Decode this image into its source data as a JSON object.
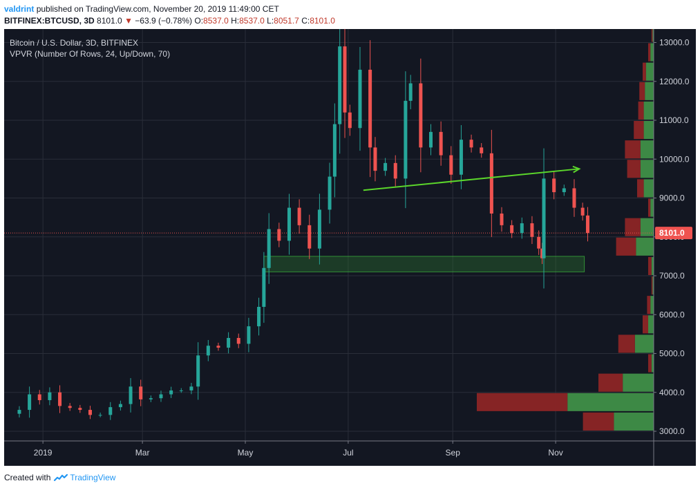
{
  "header": {
    "author": "valdrint",
    "published": "published on TradingView.com, November 20, 2019 11:49:00 CET",
    "symbol": "BITFINEX:BTCUSD, 3D",
    "last": "8101.0",
    "change": "−63.9 (−0.78%)",
    "o_label": "O:",
    "o_value": "8537.0",
    "h_label": "H:",
    "h_value": "8537.0",
    "l_label": "L:",
    "l_value": "8051.7",
    "c_label": "C:",
    "c_value": "8101.0"
  },
  "footer": {
    "created_with": "Created with",
    "brand": "TradingView"
  },
  "colors": {
    "background": "#131722",
    "grid": "#2a2e39",
    "up": "#26a69a",
    "down": "#ef5350",
    "trendline": "#5bd62b",
    "zone": "#2e7d32",
    "vp_up": "#3f8f48",
    "vp_down": "#8c2526",
    "axis_text": "#d1d4dc",
    "price_line": "#ef5350"
  },
  "chart_data": {
    "type": "candlestick",
    "title": "Bitcoin / U.S. Dollar, 3D, BITFINEX",
    "indicator": "VPVR (Number Of Rows, 24, Up/Down, 70)",
    "y_ticks": [
      "3000.0",
      "4000.0",
      "5000.0",
      "6000.0",
      "7000.0",
      "8000.0",
      "9000.0",
      "10000.0",
      "11000.0",
      "12000.0",
      "13000.0"
    ],
    "ylim": [
      2850,
      13550
    ],
    "x_ticks": [
      "2019",
      "Mar",
      "May",
      "Jul",
      "Sep",
      "Nov"
    ],
    "last_price_label": "8101.0",
    "last_price": 8101.0,
    "candle_period": "3D",
    "series_approx": [
      [
        "2018-12-12",
        3450
      ],
      [
        "2018-12-18",
        3550
      ],
      [
        "2018-12-24",
        3950
      ],
      [
        "2018-12-30",
        3800
      ],
      [
        "2019-01-05",
        4000
      ],
      [
        "2019-01-11",
        3650
      ],
      [
        "2019-01-17",
        3600
      ],
      [
        "2019-01-23",
        3550
      ],
      [
        "2019-01-29",
        3420
      ],
      [
        "2019-02-04",
        3420
      ],
      [
        "2019-02-10",
        3620
      ],
      [
        "2019-02-16",
        3700
      ],
      [
        "2019-02-22",
        4150
      ],
      [
        "2019-02-28",
        3820
      ],
      [
        "2019-03-06",
        3850
      ],
      [
        "2019-03-12",
        3950
      ],
      [
        "2019-03-18",
        4050
      ],
      [
        "2019-03-24",
        4050
      ],
      [
        "2019-03-30",
        4150
      ],
      [
        "2019-04-03",
        4950
      ],
      [
        "2019-04-09",
        5200
      ],
      [
        "2019-04-15",
        5150
      ],
      [
        "2019-04-21",
        5400
      ],
      [
        "2019-04-27",
        5250
      ],
      [
        "2019-05-03",
        5700
      ],
      [
        "2019-05-09",
        6200
      ],
      [
        "2019-05-12",
        7200
      ],
      [
        "2019-05-15",
        8200
      ],
      [
        "2019-05-21",
        7900
      ],
      [
        "2019-05-27",
        8750
      ],
      [
        "2019-06-02",
        8300
      ],
      [
        "2019-06-08",
        7700
      ],
      [
        "2019-06-14",
        8700
      ],
      [
        "2019-06-20",
        9550
      ],
      [
        "2019-06-23",
        10900
      ],
      [
        "2019-06-26",
        12900
      ],
      [
        "2019-06-29",
        11200
      ],
      [
        "2019-07-02",
        10800
      ],
      [
        "2019-07-08",
        12300
      ],
      [
        "2019-07-14",
        10300
      ],
      [
        "2019-07-17",
        9700
      ],
      [
        "2019-07-23",
        9900
      ],
      [
        "2019-07-29",
        9500
      ],
      [
        "2019-08-04",
        11500
      ],
      [
        "2019-08-07",
        11950
      ],
      [
        "2019-08-13",
        10300
      ],
      [
        "2019-08-19",
        10700
      ],
      [
        "2019-08-25",
        10100
      ],
      [
        "2019-08-31",
        9600
      ],
      [
        "2019-09-06",
        10500
      ],
      [
        "2019-09-12",
        10300
      ],
      [
        "2019-09-18",
        10150
      ],
      [
        "2019-09-24",
        8600
      ],
      [
        "2019-09-30",
        8300
      ],
      [
        "2019-10-06",
        8100
      ],
      [
        "2019-10-12",
        8350
      ],
      [
        "2019-10-18",
        8000
      ],
      [
        "2019-10-22",
        7700
      ],
      [
        "2019-10-24",
        7450
      ],
      [
        "2019-10-25",
        9500
      ],
      [
        "2019-10-31",
        9150
      ],
      [
        "2019-11-06",
        9250
      ],
      [
        "2019-11-12",
        8750
      ],
      [
        "2019-11-17",
        8550
      ],
      [
        "2019-11-20",
        8101
      ]
    ],
    "annotations": {
      "trendline": {
        "from": [
          "2019-07-10",
          9200
        ],
        "to": [
          "2019-11-15",
          9750
        ],
        "arrow": true
      },
      "support_zone": {
        "from_date": "2019-05-12",
        "to_date": "2019-11-18",
        "low": 7100,
        "high": 7500
      }
    },
    "volume_profile": [
      {
        "price": 3250,
        "up": 0.36,
        "down": 0.28
      },
      {
        "price": 3750,
        "up": 0.78,
        "down": 0.82
      },
      {
        "price": 4250,
        "up": 0.28,
        "down": 0.22
      },
      {
        "price": 4750,
        "up": 0.02,
        "down": 0.03
      },
      {
        "price": 5250,
        "up": 0.17,
        "down": 0.15
      },
      {
        "price": 5750,
        "up": 0.05,
        "down": 0.05
      },
      {
        "price": 6250,
        "up": 0.03,
        "down": 0.03
      },
      {
        "price": 6750,
        "up": 0.01,
        "down": 0.01
      },
      {
        "price": 7250,
        "up": 0.02,
        "down": 0.03
      },
      {
        "price": 7750,
        "up": 0.16,
        "down": 0.18
      },
      {
        "price": 8250,
        "up": 0.12,
        "down": 0.14
      },
      {
        "price": 8750,
        "up": 0.03,
        "down": 0.02
      },
      {
        "price": 9250,
        "up": 0.09,
        "down": 0.06
      },
      {
        "price": 9750,
        "up": 0.12,
        "down": 0.12
      },
      {
        "price": 10250,
        "up": 0.12,
        "down": 0.14
      },
      {
        "price": 10750,
        "up": 0.09,
        "down": 0.09
      },
      {
        "price": 11250,
        "up": 0.09,
        "down": 0.05
      },
      {
        "price": 11750,
        "up": 0.08,
        "down": 0.05
      },
      {
        "price": 12250,
        "up": 0.07,
        "down": 0.03
      },
      {
        "price": 12750,
        "up": 0.03,
        "down": 0.02
      },
      {
        "price": 13250,
        "up": 0.01,
        "down": 0.01
      }
    ]
  }
}
